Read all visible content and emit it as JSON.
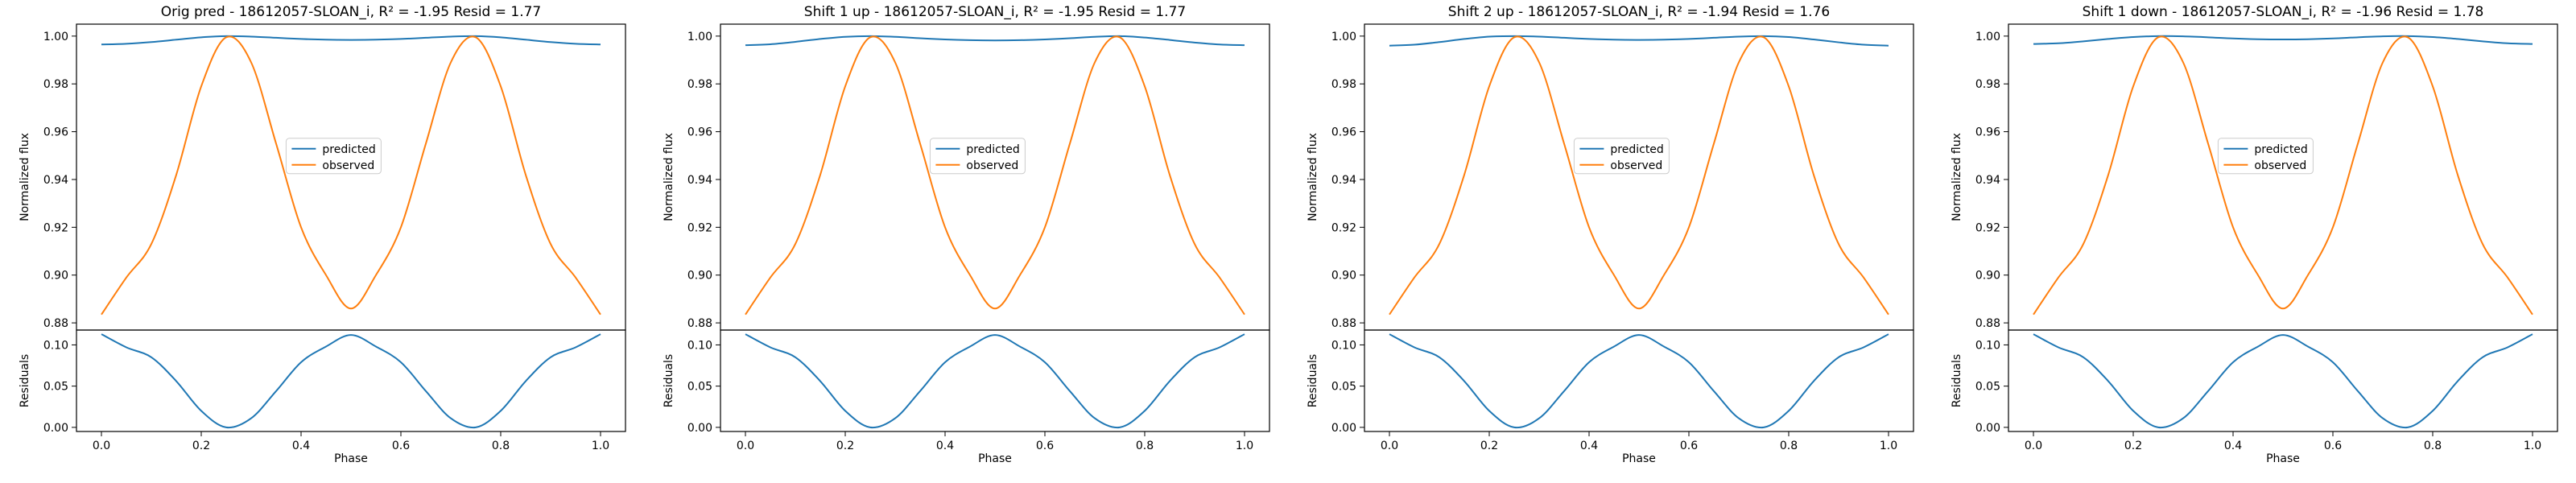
{
  "colors": {
    "predicted": "#1f77b4",
    "observed": "#ff7f0e",
    "axes": "#000000"
  },
  "chart_data": [
    {
      "type": "line",
      "title": "Orig pred - 18612057-SLOAN_i, R² = -1.95 Resid = 1.77",
      "xlabel": "Phase",
      "ylabel": "Normalized flux",
      "resid_ylabel": "Residuals",
      "xlim": [
        -0.05,
        1.05
      ],
      "ylim": [
        0.877,
        1.005
      ],
      "resid_ylim": [
        -0.005,
        0.118
      ],
      "xticks": [
        "0.0",
        "0.2",
        "0.4",
        "0.6",
        "0.8",
        "1.0"
      ],
      "yticks": [
        "0.88",
        "0.90",
        "0.92",
        "0.94",
        "0.96",
        "0.98",
        "1.00"
      ],
      "resid_yticks": [
        "0.00",
        "0.05",
        "0.10"
      ],
      "legend": {
        "placement": "center",
        "entries": [
          "predicted",
          "observed"
        ]
      },
      "x": [
        0,
        0.05,
        0.1,
        0.15,
        0.2,
        0.25,
        0.3,
        0.35,
        0.4,
        0.45,
        0.5,
        0.55,
        0.6,
        0.65,
        0.7,
        0.75,
        0.8,
        0.85,
        0.9,
        0.95,
        1.0
      ],
      "series": [
        {
          "name": "predicted",
          "values": [
            0.9965,
            0.9968,
            0.9975,
            0.9985,
            0.9995,
            1.0,
            0.9998,
            0.9993,
            0.9988,
            0.9985,
            0.9984,
            0.9985,
            0.9988,
            0.9993,
            0.9998,
            1.0,
            0.9995,
            0.9985,
            0.9975,
            0.9968,
            0.9965
          ]
        },
        {
          "name": "observed",
          "values": [
            0.8835,
            0.899,
            0.913,
            0.942,
            0.979,
            0.9995,
            0.989,
            0.955,
            0.92,
            0.9,
            0.886,
            0.9,
            0.92,
            0.955,
            0.989,
            0.9995,
            0.979,
            0.942,
            0.913,
            0.899,
            0.8835
          ]
        },
        {
          "name": "residuals",
          "values": [
            0.113,
            0.097,
            0.085,
            0.056,
            0.02,
            0.0,
            0.011,
            0.044,
            0.079,
            0.098,
            0.112,
            0.098,
            0.079,
            0.044,
            0.011,
            0.0,
            0.02,
            0.056,
            0.085,
            0.097,
            0.113
          ]
        }
      ]
    },
    {
      "type": "line",
      "title": "Shift 1 up - 18612057-SLOAN_i, R² = -1.95 Resid = 1.77",
      "xlabel": "Phase",
      "ylabel": "Normalized flux",
      "resid_ylabel": "Residuals",
      "xlim": [
        -0.05,
        1.05
      ],
      "ylim": [
        0.877,
        1.005
      ],
      "resid_ylim": [
        -0.005,
        0.118
      ],
      "xticks": [
        "0.0",
        "0.2",
        "0.4",
        "0.6",
        "0.8",
        "1.0"
      ],
      "yticks": [
        "0.88",
        "0.90",
        "0.92",
        "0.94",
        "0.96",
        "0.98",
        "1.00"
      ],
      "resid_yticks": [
        "0.00",
        "0.05",
        "0.10"
      ],
      "legend": {
        "placement": "center",
        "entries": [
          "predicted",
          "observed"
        ]
      },
      "x": [
        0,
        0.05,
        0.1,
        0.15,
        0.2,
        0.25,
        0.3,
        0.35,
        0.4,
        0.45,
        0.5,
        0.55,
        0.6,
        0.65,
        0.7,
        0.75,
        0.8,
        0.85,
        0.9,
        0.95,
        1.0
      ],
      "series": [
        {
          "name": "predicted",
          "values": [
            0.9962,
            0.9966,
            0.9976,
            0.9988,
            0.9997,
            1.0,
            0.9997,
            0.9991,
            0.9986,
            0.9983,
            0.9982,
            0.9983,
            0.9986,
            0.9991,
            0.9997,
            1.0,
            0.9994,
            0.9984,
            0.9973,
            0.9965,
            0.9962
          ]
        },
        {
          "name": "observed",
          "values": [
            0.8835,
            0.899,
            0.913,
            0.942,
            0.979,
            0.9995,
            0.989,
            0.955,
            0.92,
            0.9,
            0.886,
            0.9,
            0.92,
            0.955,
            0.989,
            0.9995,
            0.979,
            0.942,
            0.913,
            0.899,
            0.8835
          ]
        },
        {
          "name": "residuals",
          "values": [
            0.113,
            0.097,
            0.085,
            0.056,
            0.02,
            0.0,
            0.011,
            0.044,
            0.079,
            0.098,
            0.112,
            0.098,
            0.079,
            0.044,
            0.011,
            0.0,
            0.02,
            0.056,
            0.085,
            0.097,
            0.113
          ]
        }
      ]
    },
    {
      "type": "line",
      "title": "Shift 2 up - 18612057-SLOAN_i, R² = -1.94 Resid = 1.76",
      "xlabel": "Phase",
      "ylabel": "Normalized flux",
      "resid_ylabel": "Residuals",
      "xlim": [
        -0.05,
        1.05
      ],
      "ylim": [
        0.877,
        1.005
      ],
      "resid_ylim": [
        -0.005,
        0.118
      ],
      "xticks": [
        "0.0",
        "0.2",
        "0.4",
        "0.6",
        "0.8",
        "1.0"
      ],
      "yticks": [
        "0.88",
        "0.90",
        "0.92",
        "0.94",
        "0.96",
        "0.98",
        "1.00"
      ],
      "resid_yticks": [
        "0.00",
        "0.05",
        "0.10"
      ],
      "legend": {
        "placement": "center",
        "entries": [
          "predicted",
          "observed"
        ]
      },
      "x": [
        0,
        0.05,
        0.1,
        0.15,
        0.2,
        0.25,
        0.3,
        0.35,
        0.4,
        0.45,
        0.5,
        0.55,
        0.6,
        0.65,
        0.7,
        0.75,
        0.8,
        0.85,
        0.9,
        0.95,
        1.0
      ],
      "series": [
        {
          "name": "predicted",
          "values": [
            0.996,
            0.9964,
            0.9975,
            0.9988,
            0.9998,
            1.0,
            0.9998,
            0.9993,
            0.9988,
            0.9985,
            0.9984,
            0.9985,
            0.9988,
            0.9993,
            0.9998,
            1.0,
            0.9996,
            0.9986,
            0.9974,
            0.9964,
            0.996
          ]
        },
        {
          "name": "observed",
          "values": [
            0.8835,
            0.899,
            0.913,
            0.942,
            0.979,
            0.9995,
            0.989,
            0.955,
            0.92,
            0.9,
            0.886,
            0.9,
            0.92,
            0.955,
            0.989,
            0.9995,
            0.979,
            0.942,
            0.913,
            0.899,
            0.8835
          ]
        },
        {
          "name": "residuals",
          "values": [
            0.113,
            0.097,
            0.085,
            0.056,
            0.02,
            0.0,
            0.011,
            0.044,
            0.079,
            0.098,
            0.112,
            0.098,
            0.079,
            0.044,
            0.011,
            0.0,
            0.02,
            0.056,
            0.085,
            0.097,
            0.113
          ]
        }
      ]
    },
    {
      "type": "line",
      "title": "Shift 1 down - 18612057-SLOAN_i, R² = -1.96 Resid = 1.78",
      "xlabel": "Phase",
      "ylabel": "Normalized flux",
      "resid_ylabel": "Residuals",
      "xlim": [
        -0.05,
        1.05
      ],
      "ylim": [
        0.877,
        1.005
      ],
      "resid_ylim": [
        -0.005,
        0.118
      ],
      "xticks": [
        "0.0",
        "0.2",
        "0.4",
        "0.6",
        "0.8",
        "1.0"
      ],
      "yticks": [
        "0.88",
        "0.90",
        "0.92",
        "0.94",
        "0.96",
        "0.98",
        "1.00"
      ],
      "resid_yticks": [
        "0.00",
        "0.05",
        "0.10"
      ],
      "legend": {
        "placement": "center",
        "entries": [
          "predicted",
          "observed"
        ]
      },
      "x": [
        0,
        0.05,
        0.1,
        0.15,
        0.2,
        0.25,
        0.3,
        0.35,
        0.4,
        0.45,
        0.5,
        0.55,
        0.6,
        0.65,
        0.7,
        0.75,
        0.8,
        0.85,
        0.9,
        0.95,
        1.0
      ],
      "series": [
        {
          "name": "predicted",
          "values": [
            0.9967,
            0.997,
            0.9978,
            0.9988,
            0.9996,
            1.0,
            0.9999,
            0.9995,
            0.999,
            0.9987,
            0.9986,
            0.9987,
            0.999,
            0.9995,
            0.9999,
            1.0,
            0.9996,
            0.9988,
            0.9978,
            0.997,
            0.9967
          ]
        },
        {
          "name": "observed",
          "values": [
            0.8835,
            0.899,
            0.913,
            0.942,
            0.979,
            0.9995,
            0.989,
            0.955,
            0.92,
            0.9,
            0.886,
            0.9,
            0.92,
            0.955,
            0.989,
            0.9995,
            0.979,
            0.942,
            0.913,
            0.899,
            0.8835
          ]
        },
        {
          "name": "residuals",
          "values": [
            0.113,
            0.097,
            0.085,
            0.056,
            0.02,
            0.0,
            0.011,
            0.044,
            0.079,
            0.098,
            0.112,
            0.098,
            0.079,
            0.044,
            0.011,
            0.0,
            0.02,
            0.056,
            0.085,
            0.097,
            0.113
          ]
        }
      ]
    }
  ]
}
